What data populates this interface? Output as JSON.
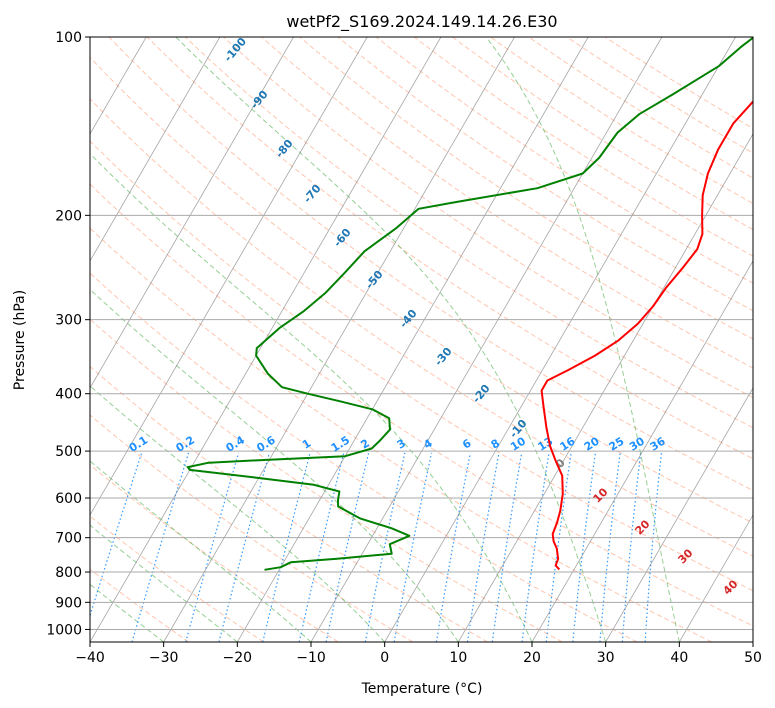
{
  "chart_data": {
    "type": "line",
    "title": "wetPf2_S169.2024.149.14.26.E30",
    "xlabel": "Temperature (°C)",
    "ylabel": "Pressure (hPa)",
    "xlim": [
      -40,
      50
    ],
    "ylim": [
      1050,
      100
    ],
    "y_scale": "log",
    "grid": true,
    "x_ticks": [
      -40,
      -30,
      -20,
      -10,
      0,
      10,
      20,
      30,
      40,
      50
    ],
    "y_ticks": [
      1000,
      900,
      800,
      700,
      600,
      500,
      400,
      300,
      200,
      100
    ],
    "colors": {
      "temperature": "#ff0000",
      "dewpoint": "#008000",
      "dry_adiabat": "#ffa07a",
      "moist_adiabat": "#2ca02c",
      "mixing_ratio": "#1e90ff",
      "isotherm": "#808080"
    },
    "series": [
      {
        "color": "#ff0000",
        "points": [
          [
            18.0,
            792
          ],
          [
            17.2,
            780
          ],
          [
            17.0,
            760
          ],
          [
            16.0,
            730
          ],
          [
            15.0,
            710
          ],
          [
            14.3,
            690
          ],
          [
            14.0,
            660
          ],
          [
            13.5,
            630
          ],
          [
            12.5,
            590
          ],
          [
            11.0,
            550
          ],
          [
            9.0,
            520
          ],
          [
            7.0,
            490
          ],
          [
            5.0,
            455
          ],
          [
            3.0,
            420
          ],
          [
            1.5,
            395
          ],
          [
            1.5,
            380
          ],
          [
            3.5,
            365
          ],
          [
            6.0,
            345
          ],
          [
            8.0,
            325
          ],
          [
            9.3,
            305
          ],
          [
            10.0,
            285
          ],
          [
            10.3,
            265
          ],
          [
            11.0,
            245
          ],
          [
            11.5,
            228
          ],
          [
            11.0,
            215
          ],
          [
            9.5,
            200
          ],
          [
            8.0,
            185
          ],
          [
            7.0,
            170
          ],
          [
            6.5,
            155
          ],
          [
            6.5,
            140
          ],
          [
            7.5,
            128
          ],
          [
            9.5,
            118
          ],
          [
            11.5,
            110
          ],
          [
            12.8,
            104
          ],
          [
            13.5,
            100
          ]
        ]
      },
      {
        "color": "#008000",
        "points": [
          [
            -22.0,
            793
          ],
          [
            -20.0,
            785
          ],
          [
            -19.0,
            770
          ],
          [
            -13.0,
            760
          ],
          [
            -6.0,
            745
          ],
          [
            -7.0,
            718
          ],
          [
            -5.0,
            695
          ],
          [
            -8.0,
            675
          ],
          [
            -13.0,
            650
          ],
          [
            -17.0,
            620
          ],
          [
            -17.5,
            605
          ],
          [
            -18.0,
            585
          ],
          [
            -22.0,
            570
          ],
          [
            -30.0,
            555
          ],
          [
            -40.0,
            538
          ],
          [
            -40.5,
            532
          ],
          [
            -38.0,
            523
          ],
          [
            -30.0,
            517
          ],
          [
            -20.0,
            510
          ],
          [
            -17.0,
            495
          ],
          [
            -16.5,
            480
          ],
          [
            -16.0,
            460
          ],
          [
            -17.0,
            440
          ],
          [
            -20.0,
            425
          ],
          [
            -25.0,
            412
          ],
          [
            -30.0,
            400
          ],
          [
            -34.0,
            390
          ],
          [
            -37.0,
            370
          ],
          [
            -40.0,
            345
          ],
          [
            -40.5,
            335
          ],
          [
            -39.0,
            310
          ],
          [
            -37.0,
            290
          ],
          [
            -35.5,
            270
          ],
          [
            -34.5,
            250
          ],
          [
            -33.5,
            230
          ],
          [
            -31.0,
            210
          ],
          [
            -29.5,
            195
          ],
          [
            -25.0,
            190
          ],
          [
            -15.0,
            180
          ],
          [
            -10.0,
            170
          ],
          [
            -9.0,
            160
          ],
          [
            -8.5,
            145
          ],
          [
            -7.0,
            135
          ],
          [
            -4.0,
            125
          ],
          [
            0.0,
            112
          ],
          [
            1.5,
            104
          ],
          [
            2.5,
            100
          ]
        ]
      }
    ],
    "mixing_ratio_labels": [
      "0.1",
      "0.2",
      "0.4",
      "0.6",
      "1",
      "1.5",
      "2",
      "3",
      "4",
      "6",
      "8",
      "10",
      "13",
      "16",
      "20",
      "25",
      "30",
      "36"
    ],
    "moist_adiabat_labels": [
      "-100",
      "-90",
      "-80",
      "-70",
      "-60",
      "-50",
      "-40",
      "-30",
      "-20",
      "-10"
    ],
    "dry_adiabat_labels": [
      "0",
      "10",
      "20",
      "30",
      "40"
    ]
  }
}
